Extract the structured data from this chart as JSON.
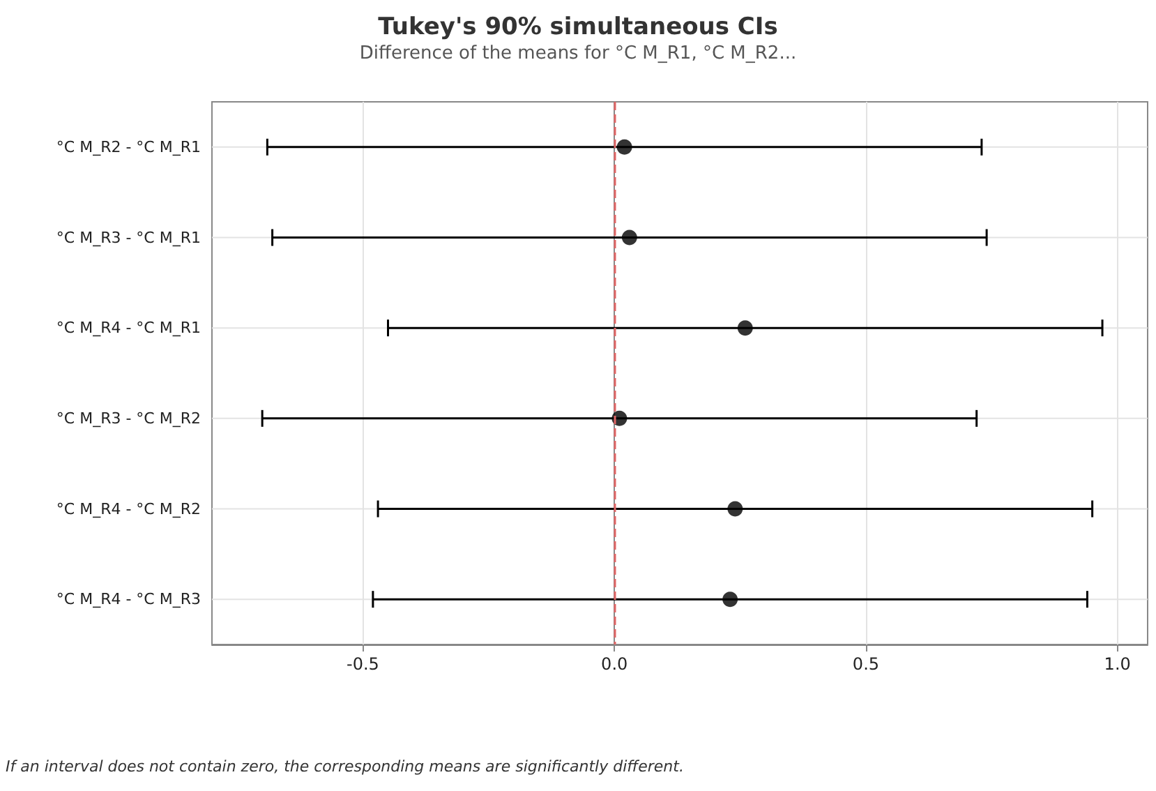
{
  "chart_data": {
    "type": "scatter",
    "title": "Tukey's 90% simultaneous CIs",
    "subtitle": "Difference of the means for °C M_R1, °C M_R2...",
    "orientation": "horizontal",
    "categories": [
      "°C M_R2 - °C M_R1",
      "°C M_R3 - °C M_R1",
      "°C M_R4 - °C M_R1",
      "°C M_R3 - °C M_R2",
      "°C M_R4 - °C M_R2",
      "°C M_R4 - °C M_R3"
    ],
    "series": [
      {
        "color": "#000000",
        "values": [
          0.02,
          0.03,
          0.26,
          0.01,
          0.24,
          0.23
        ],
        "errors": [
          [
            -0.69,
            0.73
          ],
          [
            -0.68,
            0.74
          ],
          [
            -0.45,
            0.97
          ],
          [
            -0.7,
            0.72
          ],
          [
            -0.47,
            0.95
          ],
          [
            -0.48,
            0.94
          ]
        ]
      }
    ],
    "xlim": [
      -0.8,
      1.06
    ],
    "xticks": [
      {
        "value": -0.5,
        "label": "-0.5"
      },
      {
        "value": 0,
        "label": "0.0"
      },
      {
        "value": 0.5,
        "label": "0.5"
      },
      {
        "value": 1,
        "label": "1.0"
      }
    ],
    "grid": true,
    "marker": "circle",
    "ref_lines": [
      {
        "axis": "x",
        "value": 0,
        "color": "#e06666",
        "line_style": "dashed"
      }
    ],
    "annotations": [
      "If an interval does not contain zero, the corresponding means are significantly different."
    ]
  }
}
